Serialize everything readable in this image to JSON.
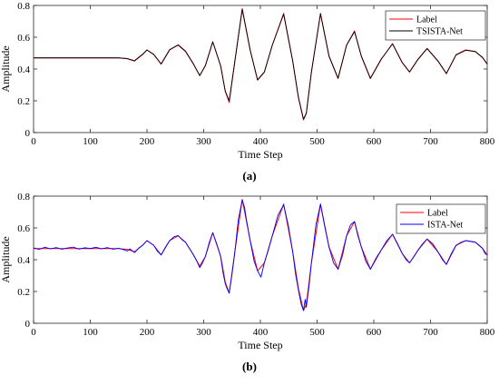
{
  "chart_data": [
    {
      "type": "line",
      "panel_label": "(a)",
      "xlabel": "Time Step",
      "ylabel": "Amplitude",
      "xlim": [
        0,
        800
      ],
      "ylim": [
        0,
        0.8
      ],
      "xticks": [
        0,
        100,
        200,
        300,
        400,
        500,
        600,
        700,
        800
      ],
      "yticks": [
        0,
        0.2,
        0.4,
        0.6,
        0.8
      ],
      "grid": false,
      "legend_position": "top-right",
      "series": [
        {
          "name": "Label",
          "color": "#ff0000",
          "x": [
            0,
            150,
            165,
            178,
            192,
            200,
            212,
            225,
            240,
            255,
            268,
            282,
            293,
            303,
            316,
            330,
            338,
            345,
            355,
            368,
            382,
            395,
            407,
            421,
            441,
            457,
            467,
            476,
            481,
            490,
            506,
            521,
            537,
            552,
            566,
            578,
            594,
            613,
            633,
            650,
            663,
            678,
            694,
            713,
            728,
            745,
            762,
            779,
            792,
            800
          ],
          "y": [
            0.47,
            0.47,
            0.465,
            0.45,
            0.49,
            0.52,
            0.49,
            0.43,
            0.52,
            0.55,
            0.51,
            0.43,
            0.36,
            0.42,
            0.57,
            0.42,
            0.26,
            0.19,
            0.45,
            0.78,
            0.52,
            0.33,
            0.38,
            0.55,
            0.75,
            0.45,
            0.22,
            0.08,
            0.12,
            0.38,
            0.75,
            0.48,
            0.34,
            0.55,
            0.64,
            0.48,
            0.34,
            0.46,
            0.56,
            0.44,
            0.38,
            0.46,
            0.53,
            0.45,
            0.37,
            0.49,
            0.52,
            0.51,
            0.47,
            0.43
          ]
        },
        {
          "name": "TSISTA-Net",
          "color": "#000000",
          "x": [
            0,
            150,
            165,
            178,
            192,
            200,
            212,
            225,
            240,
            255,
            268,
            282,
            293,
            303,
            316,
            330,
            338,
            345,
            355,
            368,
            382,
            395,
            407,
            421,
            441,
            457,
            467,
            476,
            481,
            490,
            506,
            521,
            537,
            552,
            566,
            578,
            594,
            613,
            633,
            650,
            663,
            678,
            694,
            713,
            728,
            745,
            762,
            779,
            792,
            800
          ],
          "y": [
            0.47,
            0.47,
            0.466,
            0.452,
            0.492,
            0.52,
            0.492,
            0.432,
            0.522,
            0.552,
            0.512,
            0.432,
            0.358,
            0.422,
            0.572,
            0.418,
            0.262,
            0.2,
            0.45,
            0.775,
            0.518,
            0.332,
            0.382,
            0.55,
            0.745,
            0.45,
            0.224,
            0.085,
            0.122,
            0.382,
            0.748,
            0.482,
            0.342,
            0.55,
            0.635,
            0.482,
            0.342,
            0.462,
            0.558,
            0.442,
            0.382,
            0.462,
            0.528,
            0.452,
            0.372,
            0.488,
            0.518,
            0.51,
            0.472,
            0.432
          ]
        }
      ]
    },
    {
      "type": "line",
      "panel_label": "(b)",
      "xlabel": "Time Step",
      "ylabel": "Amplitude",
      "xlim": [
        0,
        800
      ],
      "ylim": [
        0,
        0.8
      ],
      "xticks": [
        0,
        100,
        200,
        300,
        400,
        500,
        600,
        700,
        800
      ],
      "yticks": [
        0,
        0.2,
        0.4,
        0.6,
        0.8
      ],
      "grid": false,
      "legend_position": "top-right",
      "series": [
        {
          "name": "Label",
          "color": "#ff0000",
          "x": [
            0,
            150,
            165,
            178,
            192,
            200,
            212,
            225,
            240,
            255,
            268,
            282,
            293,
            303,
            316,
            330,
            338,
            345,
            355,
            368,
            382,
            395,
            407,
            421,
            441,
            457,
            467,
            476,
            481,
            490,
            506,
            521,
            537,
            552,
            566,
            578,
            594,
            613,
            633,
            650,
            663,
            678,
            694,
            713,
            728,
            745,
            762,
            779,
            792,
            800
          ],
          "y": [
            0.47,
            0.47,
            0.465,
            0.45,
            0.49,
            0.52,
            0.49,
            0.43,
            0.52,
            0.55,
            0.51,
            0.43,
            0.36,
            0.42,
            0.57,
            0.42,
            0.26,
            0.19,
            0.45,
            0.78,
            0.52,
            0.33,
            0.38,
            0.55,
            0.75,
            0.45,
            0.22,
            0.08,
            0.12,
            0.38,
            0.75,
            0.48,
            0.34,
            0.55,
            0.64,
            0.48,
            0.34,
            0.46,
            0.56,
            0.44,
            0.38,
            0.46,
            0.53,
            0.45,
            0.37,
            0.49,
            0.52,
            0.51,
            0.47,
            0.43
          ]
        },
        {
          "name": "ISTA-Net",
          "color": "#0000ff",
          "x": [
            0,
            10,
            20,
            30,
            40,
            50,
            60,
            70,
            80,
            90,
            100,
            110,
            120,
            130,
            140,
            150,
            160,
            165,
            170,
            178,
            186,
            192,
            200,
            206,
            212,
            218,
            225,
            232,
            240,
            248,
            255,
            262,
            268,
            275,
            282,
            288,
            293,
            298,
            303,
            310,
            316,
            323,
            330,
            334,
            338,
            341,
            345,
            350,
            355,
            361,
            368,
            372,
            375,
            382,
            389,
            395,
            401,
            407,
            414,
            421,
            431,
            441,
            449,
            457,
            462,
            467,
            472,
            476,
            479,
            481,
            486,
            490,
            498,
            506,
            514,
            521,
            529,
            537,
            545,
            552,
            559,
            566,
            572,
            578,
            586,
            594,
            604,
            613,
            623,
            633,
            642,
            650,
            657,
            663,
            671,
            678,
            686,
            694,
            704,
            713,
            721,
            728,
            737,
            745,
            754,
            762,
            771,
            779,
            786,
            792,
            796,
            800
          ],
          "y": [
            0.475,
            0.465,
            0.478,
            0.468,
            0.476,
            0.466,
            0.474,
            0.479,
            0.467,
            0.475,
            0.47,
            0.478,
            0.468,
            0.476,
            0.466,
            0.472,
            0.462,
            0.455,
            0.468,
            0.445,
            0.475,
            0.49,
            0.52,
            0.505,
            0.49,
            0.455,
            0.43,
            0.475,
            0.52,
            0.545,
            0.552,
            0.525,
            0.51,
            0.47,
            0.43,
            0.39,
            0.35,
            0.38,
            0.42,
            0.51,
            0.57,
            0.5,
            0.42,
            0.32,
            0.25,
            0.22,
            0.19,
            0.31,
            0.45,
            0.65,
            0.775,
            0.73,
            0.66,
            0.52,
            0.39,
            0.33,
            0.29,
            0.38,
            0.46,
            0.55,
            0.68,
            0.745,
            0.62,
            0.45,
            0.31,
            0.21,
            0.12,
            0.08,
            0.15,
            0.1,
            0.24,
            0.38,
            0.62,
            0.75,
            0.6,
            0.48,
            0.38,
            0.34,
            0.43,
            0.55,
            0.62,
            0.64,
            0.55,
            0.48,
            0.39,
            0.34,
            0.41,
            0.46,
            0.52,
            0.56,
            0.5,
            0.44,
            0.4,
            0.38,
            0.42,
            0.46,
            0.5,
            0.53,
            0.5,
            0.45,
            0.4,
            0.37,
            0.44,
            0.49,
            0.51,
            0.52,
            0.515,
            0.51,
            0.49,
            0.47,
            0.44,
            0.43
          ]
        }
      ]
    }
  ]
}
